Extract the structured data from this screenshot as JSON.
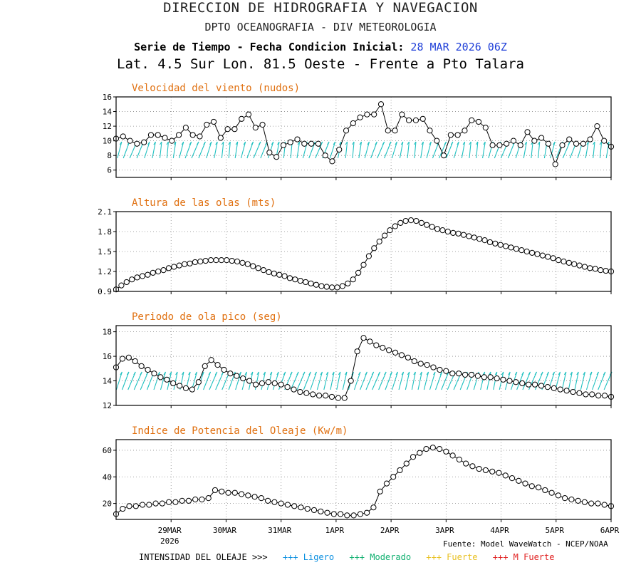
{
  "header": {
    "line1": "DIRECCION DE HIDROGRAFIA Y NAVEGACION",
    "line2": "DPTO OCEANOGRAFIA - DIV METEOROLOGIA",
    "line3_label": "Serie de Tiempo - Fecha Condicion Inicial:",
    "line3_date": "28 MAR 2026 06Z",
    "line4": "Lat. 4.5 Sur  Lon. 81.5 Oeste - Frente a Pto Talara"
  },
  "source": "Fuente: Model WaveWatch - NCEP/NOAA",
  "legend": {
    "label": "INTENSIDAD DEL OLEAJE >>>",
    "items": [
      {
        "text": "+++ Ligero",
        "color": "#0a8fe0"
      },
      {
        "text": "+++ Moderado",
        "color": "#10b070"
      },
      {
        "text": "+++ Fuerte",
        "color": "#e8c020"
      },
      {
        "text": "+++ M Fuerte",
        "color": "#e02020"
      }
    ]
  },
  "x_axis": {
    "ticks": [
      {
        "label": "29MAR",
        "sub": "2026",
        "t": 1
      },
      {
        "label": "30MAR",
        "sub": "",
        "t": 2
      },
      {
        "label": "31MAR",
        "sub": "",
        "t": 3
      },
      {
        "label": "1APR",
        "sub": "",
        "t": 4
      },
      {
        "label": "2APR",
        "sub": "",
        "t": 5
      },
      {
        "label": "3APR",
        "sub": "",
        "t": 6
      },
      {
        "label": "4APR",
        "sub": "",
        "t": 7
      },
      {
        "label": "5APR",
        "sub": "",
        "t": 8
      },
      {
        "label": "6APR",
        "sub": "",
        "t": 9
      }
    ]
  },
  "chart_data": [
    {
      "type": "line",
      "title": "Velocidad del viento (nudos)",
      "ylim": [
        5,
        16
      ],
      "yticks": [
        6,
        8,
        10,
        12,
        14,
        16
      ],
      "grid": true,
      "arrow_color": "#20c0c0",
      "values": [
        10.3,
        10.6,
        10.0,
        9.6,
        9.8,
        10.8,
        10.8,
        10.4,
        10.0,
        10.8,
        11.8,
        10.8,
        10.6,
        12.2,
        12.6,
        10.4,
        11.6,
        11.6,
        13.0,
        13.6,
        11.8,
        12.2,
        8.4,
        7.8,
        9.4,
        9.8,
        10.2,
        9.6,
        9.6,
        9.6,
        8.0,
        7.2,
        8.8,
        11.4,
        12.4,
        13.2,
        13.6,
        13.6,
        15.0,
        11.4,
        11.4,
        13.6,
        12.8,
        12.8,
        13.0,
        11.4,
        10.0,
        8.0,
        10.8,
        10.8,
        11.4,
        12.8,
        12.6,
        11.8,
        9.4,
        9.4,
        9.6,
        10.0,
        9.4,
        11.2,
        10.0,
        10.4,
        9.6,
        6.8,
        9.4,
        10.2,
        9.6,
        9.6,
        10.2,
        12.0,
        10.0,
        9.2
      ]
    },
    {
      "type": "line",
      "title": "Altura de las olas (mts)",
      "ylim": [
        0.9,
        2.1
      ],
      "yticks": [
        0.9,
        1.2,
        1.5,
        1.8,
        2.1
      ],
      "grid": true,
      "values": [
        0.93,
        0.99,
        1.04,
        1.08,
        1.11,
        1.13,
        1.15,
        1.18,
        1.2,
        1.22,
        1.25,
        1.27,
        1.29,
        1.31,
        1.32,
        1.34,
        1.35,
        1.36,
        1.37,
        1.37,
        1.37,
        1.37,
        1.36,
        1.35,
        1.33,
        1.31,
        1.28,
        1.25,
        1.22,
        1.19,
        1.17,
        1.15,
        1.13,
        1.1,
        1.08,
        1.06,
        1.04,
        1.02,
        1.0,
        0.98,
        0.97,
        0.96,
        0.96,
        0.98,
        1.02,
        1.08,
        1.18,
        1.3,
        1.43,
        1.55,
        1.65,
        1.74,
        1.82,
        1.88,
        1.93,
        1.96,
        1.97,
        1.96,
        1.93,
        1.9,
        1.87,
        1.84,
        1.82,
        1.8,
        1.78,
        1.77,
        1.75,
        1.73,
        1.71,
        1.69,
        1.67,
        1.64,
        1.62,
        1.6,
        1.58,
        1.56,
        1.54,
        1.52,
        1.5,
        1.48,
        1.46,
        1.44,
        1.42,
        1.4,
        1.37,
        1.35,
        1.33,
        1.31,
        1.29,
        1.27,
        1.25,
        1.24,
        1.22,
        1.21,
        1.2
      ]
    },
    {
      "type": "line",
      "title": "Periodo de ola pico (seg)",
      "ylim": [
        12,
        18.5
      ],
      "yticks": [
        12,
        14,
        16,
        18
      ],
      "grid": true,
      "arrow_color": "#20c0c0",
      "values": [
        15.1,
        15.8,
        15.9,
        15.6,
        15.2,
        14.9,
        14.6,
        14.3,
        14.1,
        13.8,
        13.6,
        13.4,
        13.3,
        13.9,
        15.2,
        15.7,
        15.3,
        14.9,
        14.6,
        14.4,
        14.2,
        14.0,
        13.7,
        13.8,
        13.9,
        13.8,
        13.7,
        13.5,
        13.3,
        13.1,
        13.0,
        12.9,
        12.8,
        12.8,
        12.7,
        12.6,
        12.6,
        14.0,
        16.4,
        17.5,
        17.2,
        16.9,
        16.7,
        16.5,
        16.3,
        16.1,
        15.9,
        15.6,
        15.4,
        15.3,
        15.1,
        14.9,
        14.8,
        14.6,
        14.6,
        14.5,
        14.5,
        14.4,
        14.3,
        14.3,
        14.2,
        14.1,
        14.0,
        13.9,
        13.8,
        13.7,
        13.7,
        13.6,
        13.5,
        13.4,
        13.3,
        13.2,
        13.1,
        13.0,
        12.9,
        12.9,
        12.8,
        12.8,
        12.7
      ]
    },
    {
      "type": "line",
      "title": "Indice de Potencia del Oleaje (Kw/m)",
      "ylim": [
        8,
        68
      ],
      "yticks": [
        20,
        40,
        60
      ],
      "grid": true,
      "values": [
        12,
        16,
        18,
        18,
        19,
        19,
        20,
        20,
        21,
        21,
        22,
        22,
        23,
        23,
        24,
        30,
        29,
        28,
        28,
        27,
        26,
        25,
        24,
        22,
        21,
        20,
        19,
        18,
        17,
        16,
        15,
        14,
        13,
        12,
        12,
        11,
        11,
        12,
        13,
        17,
        29,
        35,
        40,
        45,
        50,
        55,
        58,
        61,
        62,
        61,
        59,
        56,
        53,
        50,
        48,
        46,
        45,
        44,
        43,
        41,
        39,
        37,
        35,
        33,
        32,
        30,
        28,
        26,
        24,
        23,
        22,
        21,
        20,
        20,
        19,
        18
      ]
    }
  ]
}
